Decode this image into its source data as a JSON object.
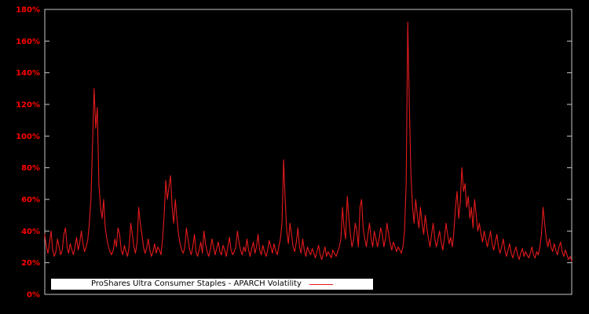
{
  "page": {
    "background": "#000000"
  },
  "chart_data": {
    "type": "line",
    "title": "",
    "xlabel": "",
    "ylabel": "",
    "ylim": [
      0,
      180
    ],
    "y_ticks": [
      0,
      20,
      40,
      60,
      80,
      100,
      120,
      140,
      160,
      180
    ],
    "y_tick_suffix": "%",
    "x_tick_labels": [],
    "grid": false,
    "plot_background": "#000000",
    "frame_color": "#c8c8c8",
    "tick_label_color": "#ff0000",
    "legend": {
      "label": "ProShares Ultra Consumer Staples - APARCH Volatility",
      "position": "bottom-left-inside",
      "background": "#ffffff",
      "text_color": "#000000"
    },
    "series": [
      {
        "name": "APARCH Volatility",
        "color": "#e41a1c",
        "unit": "%",
        "values": [
          38,
          30,
          26,
          33,
          40,
          28,
          24,
          27,
          35,
          30,
          25,
          28,
          38,
          42,
          30,
          26,
          32,
          28,
          25,
          30,
          36,
          28,
          33,
          40,
          32,
          27,
          30,
          34,
          45,
          60,
          95,
          130,
          105,
          118,
          70,
          55,
          48,
          60,
          42,
          35,
          30,
          27,
          25,
          28,
          35,
          30,
          42,
          38,
          28,
          25,
          31,
          27,
          24,
          30,
          45,
          38,
          30,
          26,
          33,
          55,
          45,
          38,
          30,
          26,
          29,
          35,
          28,
          24,
          27,
          32,
          26,
          30,
          28,
          25,
          35,
          50,
          72,
          60,
          68,
          75,
          55,
          45,
          60,
          48,
          38,
          32,
          28,
          26,
          30,
          42,
          35,
          28,
          25,
          30,
          38,
          27,
          24,
          28,
          33,
          26,
          40,
          32,
          27,
          24,
          28,
          35,
          30,
          25,
          29,
          33,
          27,
          25,
          31,
          28,
          24,
          30,
          36,
          28,
          25,
          27,
          30,
          40,
          33,
          28,
          25,
          30,
          27,
          35,
          28,
          24,
          29,
          33,
          26,
          30,
          38,
          28,
          25,
          31,
          27,
          24,
          28,
          34,
          30,
          26,
          32,
          28,
          25,
          30,
          35,
          45,
          85,
          60,
          40,
          32,
          45,
          38,
          30,
          27,
          33,
          42,
          30,
          26,
          35,
          28,
          24,
          30,
          27,
          25,
          29,
          26,
          23,
          27,
          31,
          25,
          22,
          26,
          30,
          24,
          27,
          25,
          23,
          28,
          26,
          24,
          27,
          30,
          35,
          55,
          42,
          35,
          62,
          48,
          38,
          30,
          35,
          45,
          40,
          30,
          55,
          60,
          42,
          35,
          30,
          38,
          45,
          35,
          30,
          40,
          35,
          30,
          35,
          42,
          38,
          30,
          35,
          45,
          38,
          32,
          28,
          33,
          30,
          27,
          30,
          28,
          26,
          30,
          40,
          70,
          172,
          120,
          75,
          55,
          45,
          60,
          50,
          42,
          55,
          45,
          38,
          50,
          42,
          35,
          30,
          38,
          45,
          35,
          30,
          35,
          40,
          33,
          28,
          35,
          45,
          38,
          32,
          36,
          30,
          40,
          55,
          65,
          48,
          58,
          80,
          65,
          70,
          55,
          62,
          48,
          55,
          42,
          60,
          50,
          40,
          45,
          38,
          33,
          40,
          35,
          30,
          35,
          40,
          32,
          28,
          33,
          38,
          30,
          26,
          30,
          35,
          28,
          24,
          28,
          32,
          26,
          23,
          27,
          30,
          25,
          22,
          26,
          29,
          24,
          27,
          25,
          23,
          26,
          30,
          25,
          23,
          27,
          25,
          30,
          38,
          55,
          45,
          35,
          30,
          35,
          30,
          27,
          32,
          28,
          25,
          30,
          33,
          27,
          24,
          28,
          25,
          22,
          24,
          21
        ]
      }
    ]
  }
}
